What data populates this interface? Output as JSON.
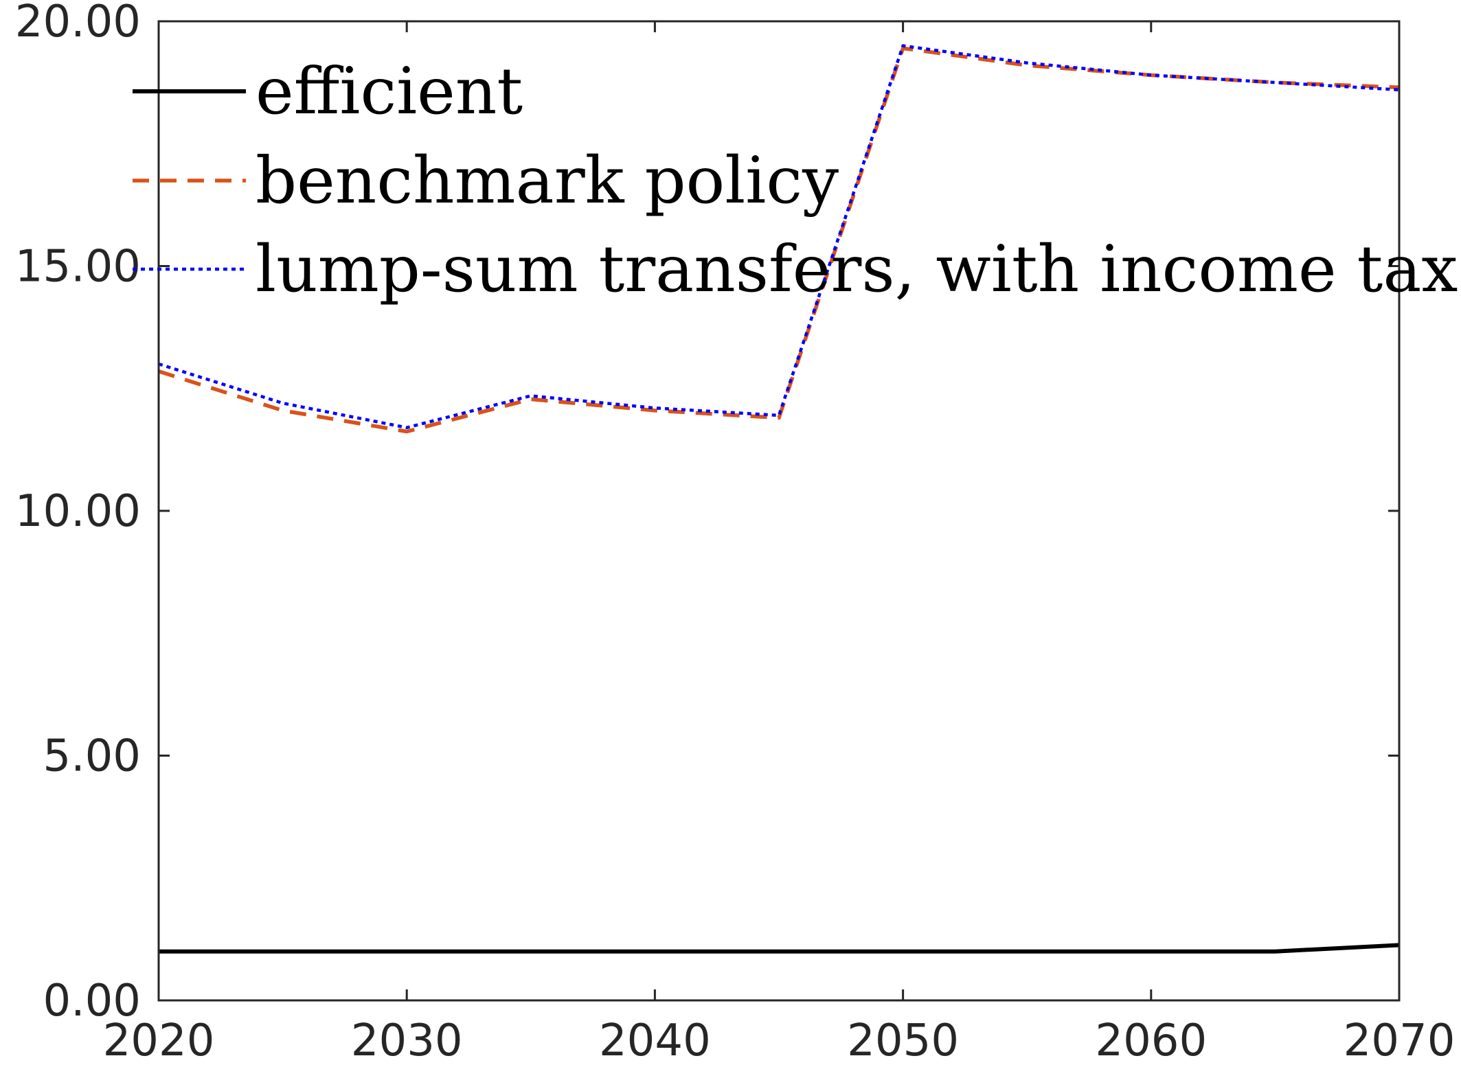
{
  "chart_data": {
    "type": "line",
    "title": "",
    "xlabel": "",
    "ylabel": "",
    "xlim": [
      2020,
      2070
    ],
    "ylim": [
      0,
      20
    ],
    "x_ticks": [
      2020,
      2030,
      2040,
      2050,
      2060,
      2070
    ],
    "y_ticks": [
      0,
      5,
      10,
      15,
      20
    ],
    "x_tick_labels": [
      "2020",
      "2030",
      "2040",
      "2050",
      "2060",
      "2070"
    ],
    "y_tick_labels": [
      "0.00",
      "5.00",
      "10.00",
      "15.00",
      "20.00"
    ],
    "grid": false,
    "legend_position": "top-left",
    "series": [
      {
        "name": "efficient",
        "color": "#000000",
        "style": "solid",
        "x": [
          2020,
          2025,
          2030,
          2035,
          2040,
          2045,
          2050,
          2055,
          2060,
          2065,
          2070
        ],
        "y": [
          1.0,
          1.0,
          1.0,
          1.0,
          1.0,
          1.0,
          1.0,
          1.0,
          1.0,
          1.0,
          1.13
        ]
      },
      {
        "name": "benchmark policy",
        "color": "#D95319",
        "style": "dashed",
        "x": [
          2020,
          2025,
          2030,
          2035,
          2040,
          2045,
          2050,
          2055,
          2060,
          2065,
          2070
        ],
        "y": [
          12.85,
          12.05,
          11.62,
          12.28,
          12.05,
          11.9,
          19.45,
          19.1,
          18.9,
          18.75,
          18.65
        ]
      },
      {
        "name": "lump-sum transfers, with income tax",
        "color": "#0000FF",
        "style": "dotted",
        "x": [
          2020,
          2025,
          2030,
          2035,
          2040,
          2045,
          2050,
          2055,
          2060,
          2065,
          2070
        ],
        "y": [
          13.0,
          12.2,
          11.7,
          12.35,
          12.1,
          11.95,
          19.5,
          19.15,
          18.9,
          18.75,
          18.6
        ]
      }
    ]
  }
}
